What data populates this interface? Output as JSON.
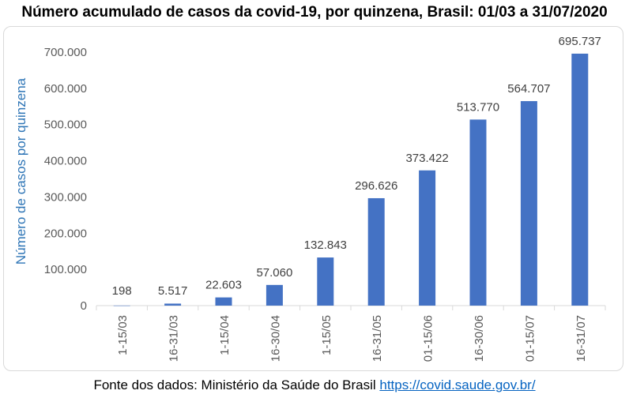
{
  "chart_data": {
    "type": "bar",
    "title": "Número acumulado de casos da covid-19, por quinzena, Brasil: 01/03 a 31/07/2020",
    "xlabel": "",
    "ylabel": "Número de casos por quinzena",
    "categories": [
      "1-15/03",
      "16-31/03",
      "1-15/04",
      "16-30/04",
      "1-15/05",
      "16-31/05",
      "01-15/06",
      "16-30/06",
      "01-15/07",
      "16-31/07"
    ],
    "values": [
      198,
      5517,
      22603,
      57060,
      132843,
      296626,
      373422,
      513770,
      564707,
      695737
    ],
    "data_labels": [
      "198",
      "5.517",
      "22.603",
      "57.060",
      "132.843",
      "296.626",
      "373.422",
      "513.770",
      "564.707",
      "695.737"
    ],
    "yticks": [
      0,
      100000,
      200000,
      300000,
      400000,
      500000,
      600000,
      700000
    ],
    "ytick_labels": [
      "0",
      "100.000",
      "200.000",
      "300.000",
      "400.000",
      "500.000",
      "600.000",
      "700.000"
    ],
    "ylim": [
      0,
      700000
    ],
    "grid": false,
    "legend": "none",
    "bar_color": "#4472c4",
    "ylabel_color": "#2e75b6"
  },
  "footer": {
    "text": "Fonte dos dados: Ministério da Saúde do Brasil ",
    "link": "https://covid.saude.gov.br/"
  }
}
